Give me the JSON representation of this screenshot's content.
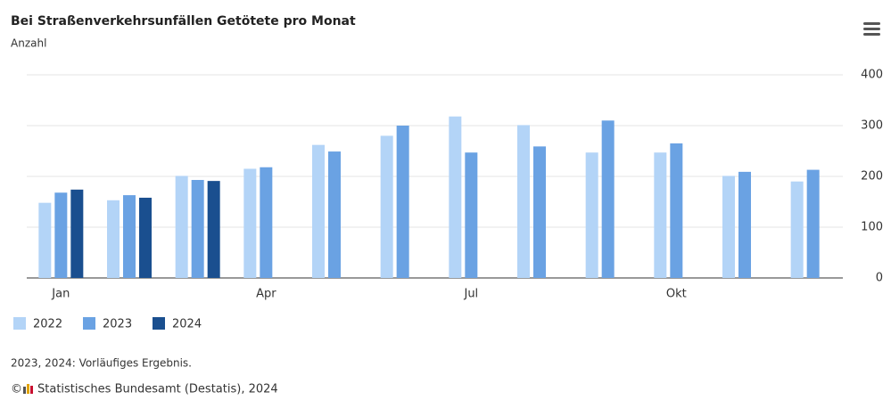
{
  "chart_data": {
    "type": "bar",
    "title": "Bei Straßenverkehrsunfällen Getötete pro Monat",
    "subtitle": "Anzahl",
    "categories": [
      "Jan",
      null,
      null,
      "Apr",
      null,
      null,
      "Jul",
      null,
      null,
      "Okt",
      null,
      null
    ],
    "series": [
      {
        "name": "2022",
        "color": "#b3d4f7",
        "values": [
          148,
          153,
          201,
          215,
          262,
          280,
          318,
          301,
          247,
          247,
          201,
          190
        ]
      },
      {
        "name": "2023",
        "color": "#6aa2e3",
        "values": [
          168,
          163,
          193,
          218,
          249,
          300,
          247,
          259,
          310,
          265,
          209,
          213
        ]
      },
      {
        "name": "2024",
        "color": "#1a4f8f",
        "values": [
          174,
          158,
          191,
          null,
          null,
          null,
          null,
          null,
          null,
          null,
          null,
          null
        ]
      }
    ],
    "ylim": [
      0,
      400
    ],
    "yticks": [
      0,
      100,
      200,
      300,
      400
    ],
    "grid": true,
    "legend": "bottom-left",
    "note": "2023, 2024: Vorläufiges Ergebnis.",
    "copyright": "©",
    "credits": "Statistisches Bundesamt (Destatis), 2024"
  }
}
